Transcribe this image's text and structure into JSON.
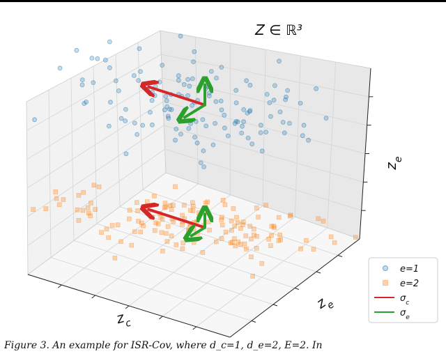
{
  "chart_data": {
    "type": "scatter",
    "projection": "3d",
    "title": "Z ∈ ℝ³",
    "axis_labels": {
      "x": "z_c",
      "y": "z_e",
      "z": "z_e"
    },
    "grid": true,
    "legend": {
      "placement": "lower-right",
      "entries": [
        {
          "label": "e=1",
          "kind": "marker",
          "marker": "circle",
          "color": "#1f77b4"
        },
        {
          "label": "e=2",
          "kind": "marker",
          "marker": "square",
          "color": "#ff7f0e"
        },
        {
          "label": "σ_c",
          "kind": "line",
          "color": "#d62728"
        },
        {
          "label": "σ_e",
          "kind": "line",
          "color": "#2ca02c"
        }
      ]
    },
    "series": [
      {
        "name": "e=1",
        "marker": "circle",
        "color": "#1f77b4",
        "cluster_center": [
          0.0,
          0.0,
          1.0
        ],
        "spread": [
          0.45,
          0.25,
          0.18
        ],
        "n_points": 130
      },
      {
        "name": "e=2",
        "marker": "square",
        "color": "#ff7f0e",
        "cluster_center": [
          0.0,
          0.0,
          -1.0
        ],
        "spread": [
          0.45,
          0.25,
          0.05
        ],
        "n_points": 150
      }
    ],
    "arrows": [
      {
        "name": "σ_c",
        "color": "#d62728",
        "group": "e=1",
        "direction": "z_c",
        "magnitude": 1.0
      },
      {
        "name": "σ_e",
        "color": "#2ca02c",
        "group": "e=1",
        "direction": "z_e",
        "magnitude": 0.6
      },
      {
        "name": "σ_e",
        "color": "#2ca02c",
        "group": "e=1",
        "direction": "z_e_depth",
        "magnitude": 0.6
      },
      {
        "name": "σ_c",
        "color": "#d62728",
        "group": "e=2",
        "direction": "z_c",
        "magnitude": 1.0
      },
      {
        "name": "σ_e",
        "color": "#2ca02c",
        "group": "e=2",
        "direction": "z_e",
        "magnitude": 0.4
      },
      {
        "name": "σ_e",
        "color": "#2ca02c",
        "group": "e=2",
        "direction": "z_e_depth",
        "magnitude": 0.4
      }
    ]
  },
  "caption": "Figure 3. An example for ISR-Cov, where d_c=1, d_e=2, E=2. In"
}
